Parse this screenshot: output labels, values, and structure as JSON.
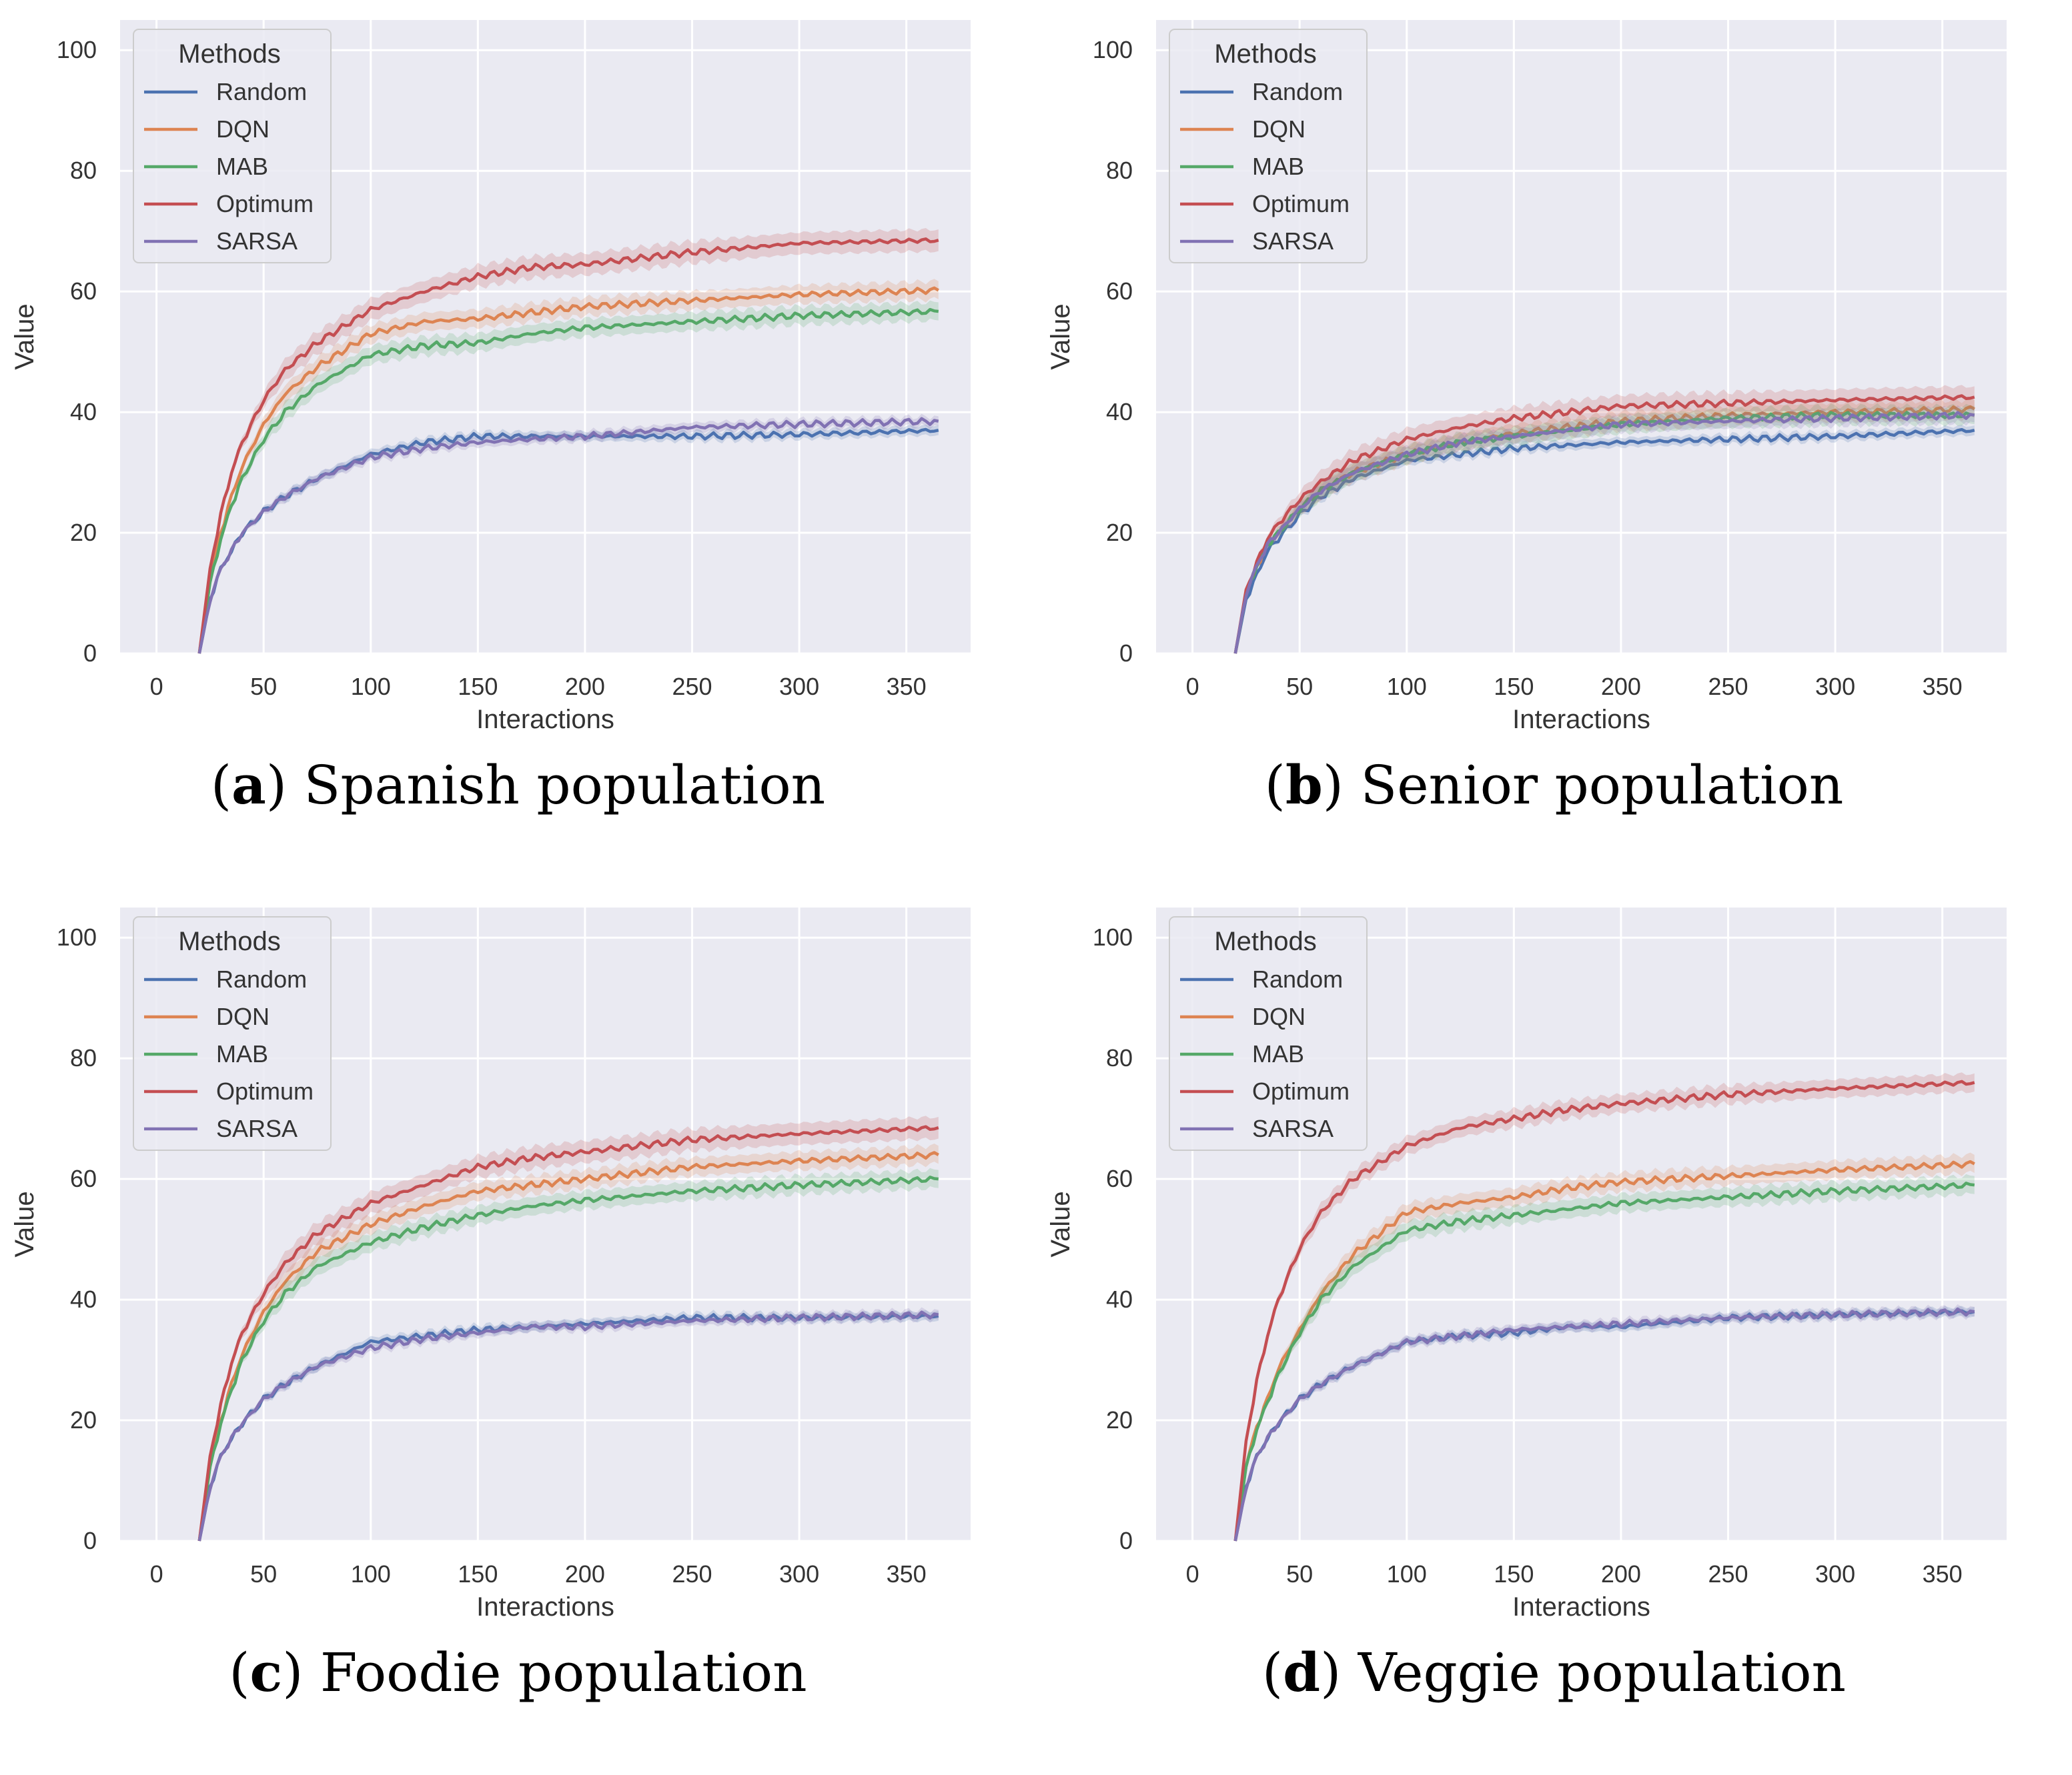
{
  "colors": {
    "Random": "#4c72b0",
    "DQN": "#dd8452",
    "MAB": "#55a868",
    "Optimum": "#c44e52",
    "SARSA": "#8172b3",
    "axes_bg": "#eaeaf2",
    "grid": "#ffffff"
  },
  "chart_data": [
    {
      "type": "line",
      "panel_label": "a",
      "caption": "Spanish population",
      "xlabel": "Interactions",
      "ylabel": "Value",
      "xlim": [
        -17,
        380
      ],
      "ylim": [
        0,
        105
      ],
      "xticks": [
        0,
        50,
        100,
        150,
        200,
        250,
        300,
        350
      ],
      "yticks": [
        0,
        20,
        40,
        60,
        80,
        100
      ],
      "grid": true,
      "legend": {
        "title": "Methods",
        "placement": "upper-left"
      },
      "x": [
        20,
        25,
        30,
        35,
        40,
        50,
        60,
        75,
        100,
        125,
        150,
        175,
        200,
        250,
        300,
        365
      ],
      "series": [
        {
          "name": "Random",
          "values": [
            0,
            9,
            14,
            17,
            20,
            23.5,
            26,
            29,
            33,
            35,
            36,
            36,
            36,
            36,
            36.3,
            37
          ],
          "band": 0.8
        },
        {
          "name": "DQN",
          "values": [
            0,
            12,
            20,
            26,
            31,
            38,
            43,
            47.5,
            53,
            55,
            55.5,
            56.5,
            57.5,
            58.5,
            59.5,
            60.2
          ],
          "band": 1.5
        },
        {
          "name": "MAB",
          "values": [
            0,
            11.5,
            19,
            24.5,
            29,
            35.5,
            40,
            44.5,
            49.5,
            51,
            51.5,
            53,
            54,
            55,
            56,
            56.7
          ],
          "band": 1.5
        },
        {
          "name": "Optimum",
          "values": [
            0,
            14,
            23,
            30,
            35,
            42,
            47,
            51.5,
            57,
            60,
            62.5,
            64,
            64.5,
            66.5,
            68,
            68.5
          ],
          "band": 1.8
        },
        {
          "name": "SARSA",
          "values": [
            0,
            9,
            14,
            17,
            20,
            23.5,
            26,
            29,
            32.5,
            34,
            35,
            35.5,
            36,
            37.5,
            38,
            38.5
          ],
          "band": 0.8
        }
      ]
    },
    {
      "type": "line",
      "panel_label": "b",
      "caption": "Senior population",
      "xlabel": "Interactions",
      "ylabel": "Value",
      "xlim": [
        -17,
        380
      ],
      "ylim": [
        0,
        105
      ],
      "xticks": [
        0,
        50,
        100,
        150,
        200,
        250,
        300,
        350
      ],
      "yticks": [
        0,
        20,
        40,
        60,
        80,
        100
      ],
      "grid": true,
      "legend": {
        "title": "Methods",
        "placement": "upper-left"
      },
      "x": [
        20,
        25,
        30,
        35,
        40,
        50,
        60,
        75,
        100,
        125,
        150,
        175,
        200,
        250,
        300,
        365
      ],
      "series": [
        {
          "name": "Random",
          "values": [
            0,
            9,
            13,
            17,
            19,
            23,
            26,
            29,
            32,
            33,
            34,
            34.5,
            35,
            35.5,
            36,
            37
          ],
          "band": 0.8
        },
        {
          "name": "DQN",
          "values": [
            0,
            10,
            14.5,
            18,
            20,
            24,
            27,
            30,
            33,
            35,
            36.5,
            37.5,
            38.5,
            39.5,
            40,
            40.5
          ],
          "band": 1.5
        },
        {
          "name": "MAB",
          "values": [
            0,
            10,
            14.5,
            18,
            20,
            24,
            27,
            30,
            33,
            35,
            36,
            37,
            38,
            39,
            39.5,
            39.5
          ],
          "band": 1.5
        },
        {
          "name": "Optimum",
          "values": [
            0,
            10.5,
            15,
            19,
            21.5,
            25.5,
            28.5,
            32,
            35.5,
            37.5,
            39,
            40,
            41,
            41.5,
            42,
            42.5
          ],
          "band": 1.8
        },
        {
          "name": "SARSA",
          "values": [
            0,
            10,
            14.5,
            18,
            20,
            24,
            27,
            30,
            33,
            35,
            36,
            37,
            38,
            38.5,
            39,
            39.5
          ],
          "band": 1.2
        }
      ]
    },
    {
      "type": "line",
      "panel_label": "c",
      "caption": "Foodie population",
      "xlabel": "Interactions",
      "ylabel": "Value",
      "xlim": [
        -17,
        380
      ],
      "ylim": [
        0,
        105
      ],
      "xticks": [
        0,
        50,
        100,
        150,
        200,
        250,
        300,
        350
      ],
      "yticks": [
        0,
        20,
        40,
        60,
        80,
        100
      ],
      "grid": true,
      "legend": {
        "title": "Methods",
        "placement": "upper-left"
      },
      "x": [
        20,
        25,
        30,
        35,
        40,
        50,
        60,
        75,
        100,
        125,
        150,
        175,
        200,
        250,
        300,
        365
      ],
      "series": [
        {
          "name": "Random",
          "values": [
            0,
            9,
            14,
            17,
            19.5,
            23.5,
            26,
            29,
            33,
            34,
            35,
            35.5,
            36,
            37,
            37,
            37.3
          ],
          "band": 0.8
        },
        {
          "name": "DQN",
          "values": [
            0,
            12.5,
            20,
            26,
            31,
            38,
            43,
            48,
            52.5,
            55.5,
            58,
            59,
            60,
            62,
            63,
            64
          ],
          "band": 1.5
        },
        {
          "name": "MAB",
          "values": [
            0,
            12,
            19.5,
            25,
            30,
            36.5,
            41,
            45.5,
            49.5,
            52,
            54,
            55.5,
            56.5,
            58,
            59,
            60
          ],
          "band": 1.5
        },
        {
          "name": "Optimum",
          "values": [
            0,
            14,
            22.5,
            29.5,
            34.5,
            41,
            46,
            51,
            56,
            59,
            62,
            63.5,
            64.5,
            66.5,
            67.5,
            68.5
          ],
          "band": 1.8
        },
        {
          "name": "SARSA",
          "values": [
            0,
            9,
            14,
            17,
            19.5,
            23.5,
            26,
            29,
            32,
            33.5,
            34.5,
            35.5,
            35.5,
            36.5,
            37,
            37.5
          ],
          "band": 0.8
        }
      ]
    },
    {
      "type": "line",
      "panel_label": "d",
      "caption": "Veggie population",
      "xlabel": "Interactions",
      "ylabel": "Value",
      "xlim": [
        -17,
        380
      ],
      "ylim": [
        0,
        105
      ],
      "xticks": [
        0,
        50,
        100,
        150,
        200,
        250,
        300,
        350
      ],
      "yticks": [
        0,
        20,
        40,
        60,
        80,
        100
      ],
      "grid": true,
      "legend": {
        "title": "Methods",
        "placement": "upper-left"
      },
      "x": [
        20,
        25,
        30,
        35,
        40,
        50,
        60,
        75,
        100,
        125,
        150,
        175,
        200,
        250,
        300,
        365
      ],
      "series": [
        {
          "name": "Random",
          "values": [
            0,
            9,
            14,
            17,
            19.5,
            23.5,
            26,
            29,
            33,
            34,
            34.5,
            35.5,
            35.5,
            37,
            37.5,
            38
          ],
          "band": 0.8
        },
        {
          "name": "DQN",
          "values": [
            0,
            12.5,
            19,
            23.5,
            28.5,
            35,
            41,
            47.5,
            54.5,
            56,
            57,
            58.5,
            59.5,
            60.5,
            61.5,
            62.5
          ],
          "band": 1.5
        },
        {
          "name": "MAB",
          "values": [
            0,
            12,
            18.5,
            23,
            27.5,
            34.5,
            40,
            45.5,
            51.5,
            53,
            54,
            55,
            56,
            57,
            58,
            59
          ],
          "band": 1.5
        },
        {
          "name": "Optimum",
          "values": [
            0,
            16.5,
            26.5,
            34,
            40,
            48.5,
            54.5,
            60,
            65.5,
            68.5,
            70,
            71.5,
            72.5,
            74,
            75,
            76
          ],
          "band": 1.5
        },
        {
          "name": "SARSA",
          "values": [
            0,
            9,
            14,
            17,
            19.5,
            23.5,
            26,
            29,
            33,
            34,
            35,
            35.5,
            36,
            37,
            37.5,
            38
          ],
          "band": 0.8
        }
      ]
    }
  ]
}
